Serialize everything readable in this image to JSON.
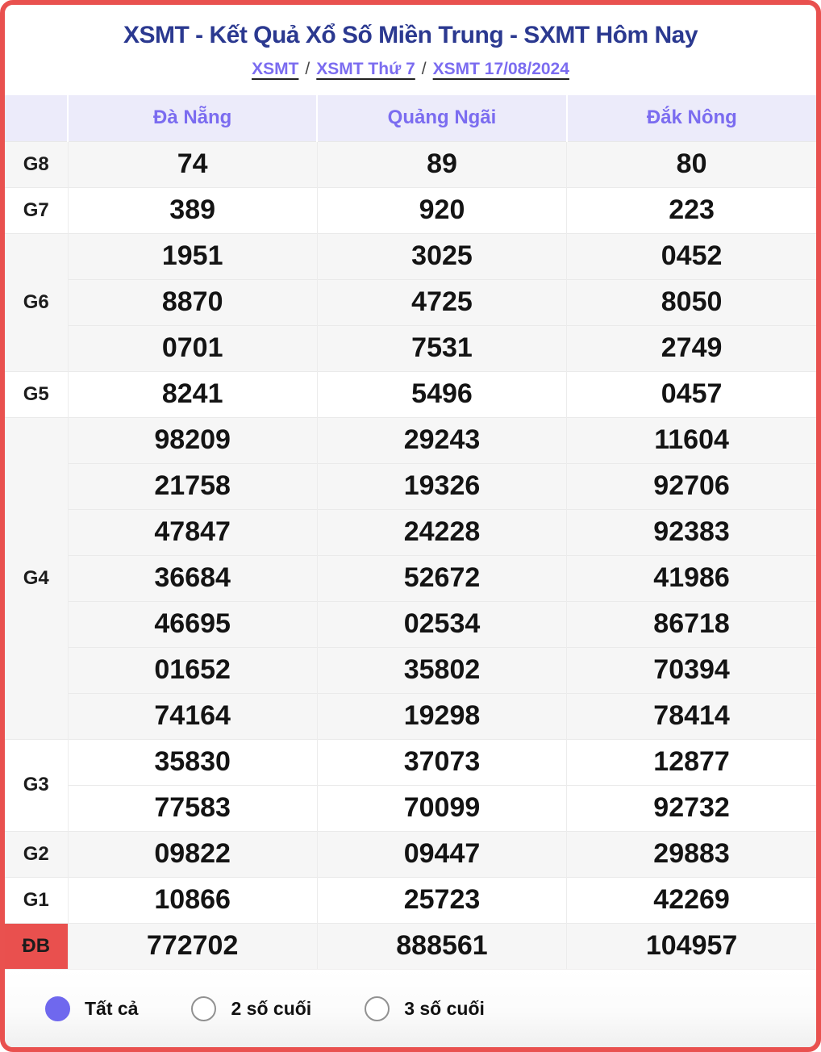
{
  "header": {
    "title": "XSMT - Kết Quả Xổ Số Miền Trung - SXMT Hôm Nay",
    "separator": "/",
    "breadcrumb": [
      {
        "label": "XSMT"
      },
      {
        "label": "XSMT Thứ 7"
      },
      {
        "label": "XSMT 17/08/2024"
      }
    ]
  },
  "table": {
    "columns": [
      "Đà Nẵng",
      "Quảng Ngãi",
      "Đắk Nông"
    ],
    "groups": [
      {
        "label": "G8",
        "highlight": true,
        "rows": [
          [
            "74",
            "89",
            "80"
          ]
        ]
      },
      {
        "label": "G7",
        "highlight": false,
        "rows": [
          [
            "389",
            "920",
            "223"
          ]
        ]
      },
      {
        "label": "G6",
        "highlight": false,
        "rows": [
          [
            "1951",
            "3025",
            "0452"
          ],
          [
            "8870",
            "4725",
            "8050"
          ],
          [
            "0701",
            "7531",
            "2749"
          ]
        ]
      },
      {
        "label": "G5",
        "highlight": false,
        "rows": [
          [
            "8241",
            "5496",
            "0457"
          ]
        ]
      },
      {
        "label": "G4",
        "highlight": false,
        "rows": [
          [
            "98209",
            "29243",
            "11604"
          ],
          [
            "21758",
            "19326",
            "92706"
          ],
          [
            "47847",
            "24228",
            "92383"
          ],
          [
            "36684",
            "52672",
            "41986"
          ],
          [
            "46695",
            "02534",
            "86718"
          ],
          [
            "01652",
            "35802",
            "70394"
          ],
          [
            "74164",
            "19298",
            "78414"
          ]
        ]
      },
      {
        "label": "G3",
        "highlight": false,
        "rows": [
          [
            "35830",
            "37073",
            "12877"
          ],
          [
            "77583",
            "70099",
            "92732"
          ]
        ]
      },
      {
        "label": "G2",
        "highlight": false,
        "rows": [
          [
            "09822",
            "09447",
            "29883"
          ]
        ]
      },
      {
        "label": "G1",
        "highlight": false,
        "rows": [
          [
            "10866",
            "25723",
            "42269"
          ]
        ]
      },
      {
        "label": "ĐB",
        "highlight": true,
        "rows": [
          [
            "772702",
            "888561",
            "104957"
          ]
        ]
      }
    ]
  },
  "filters": {
    "options": [
      {
        "label": "Tất cả",
        "selected": true
      },
      {
        "label": "2 số cuối",
        "selected": false
      },
      {
        "label": "3 số cuối",
        "selected": false
      }
    ]
  },
  "colors": {
    "card_border": "#e9514f",
    "title_navy": "#2b3990",
    "link_purple": "#7b6cf0",
    "header_bg": "#ecebfa",
    "shade_row_bg": "#f6f6f6",
    "value_red": "#e41212",
    "db_cell_bg": "#e9504e",
    "radio_selected": "#6f68ee"
  }
}
